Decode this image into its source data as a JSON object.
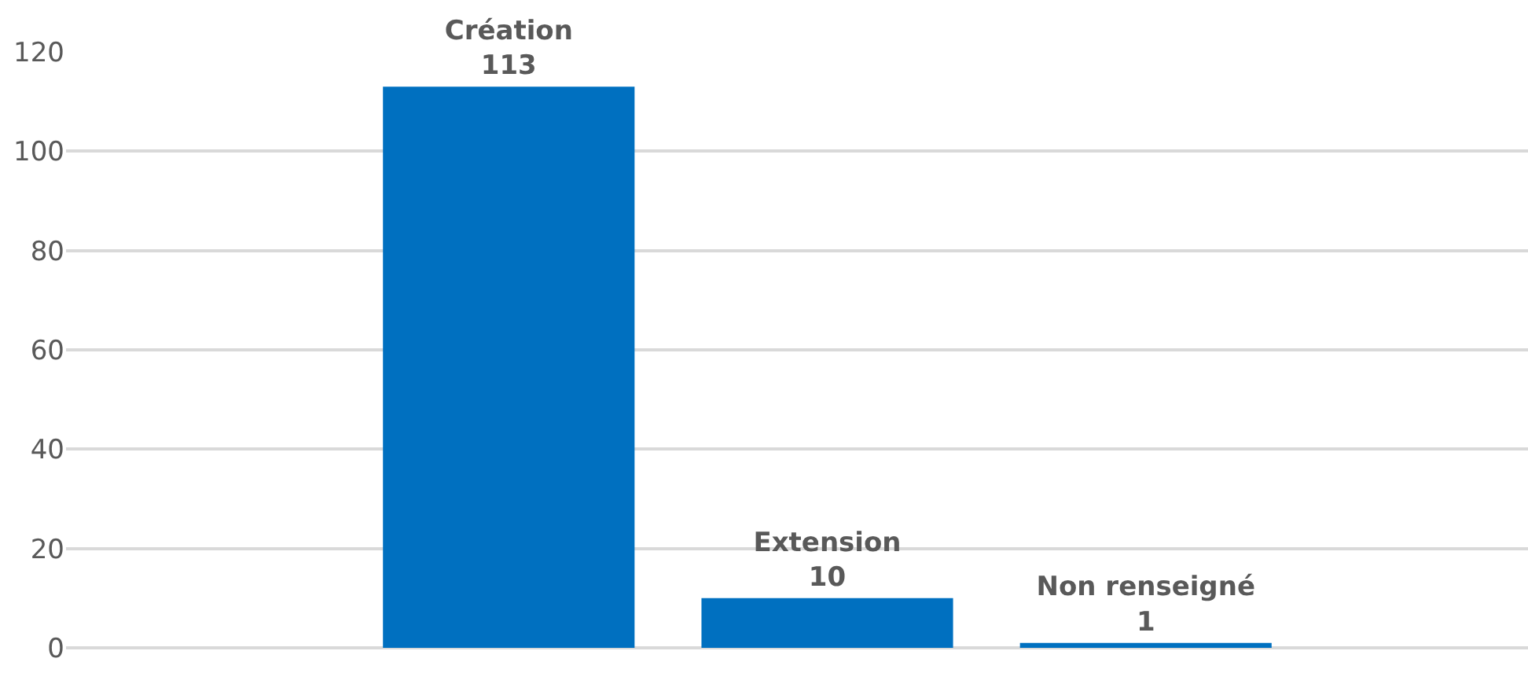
{
  "chart_data": {
    "type": "bar",
    "categories": [
      "Création",
      "Extension",
      "Non renseigné"
    ],
    "values": [
      113,
      10,
      1
    ],
    "color": "#0070c0",
    "ylim": [
      0,
      120
    ],
    "yticks": [
      0,
      20,
      40,
      60,
      80,
      100,
      120
    ],
    "grid": "y",
    "data_labels": true,
    "legend": false
  }
}
